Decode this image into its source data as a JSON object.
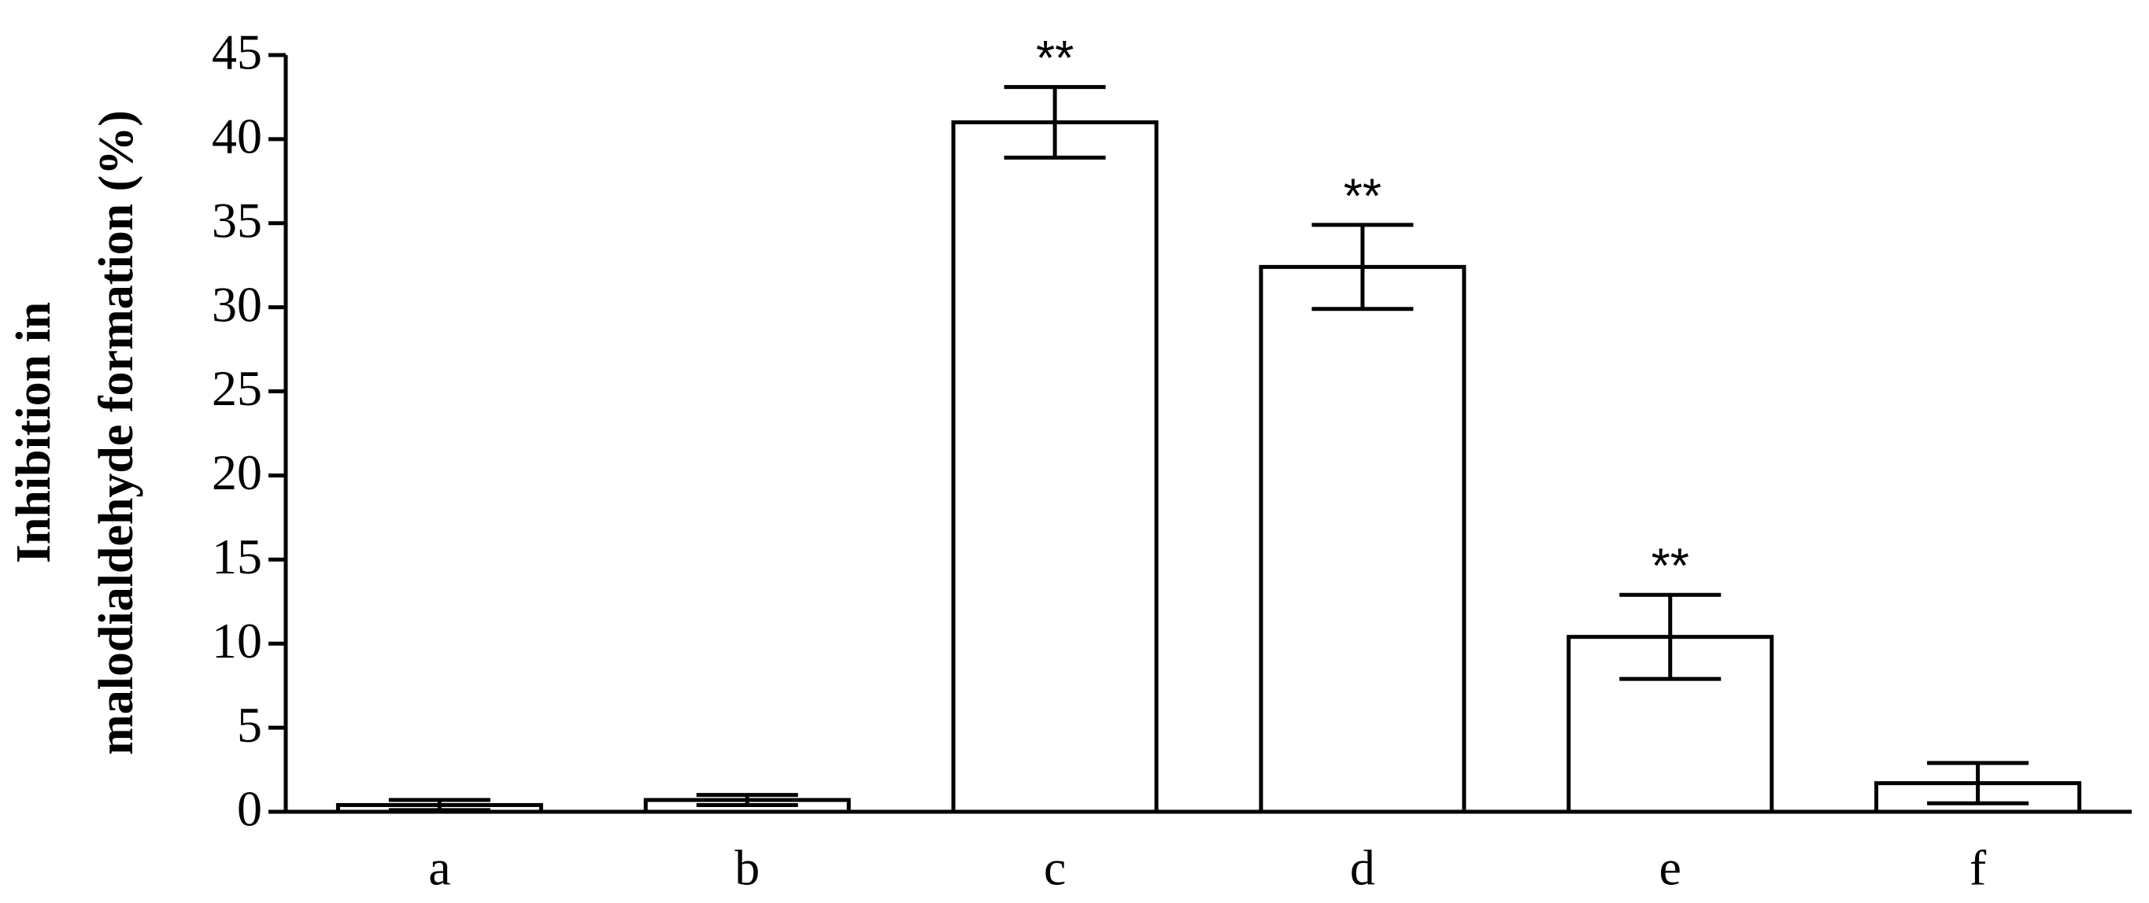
{
  "chart_data": {
    "type": "bar",
    "ylabel": [
      "Inhibition in",
      "malodialdehyde formation (%)"
    ],
    "categories": [
      "a",
      "b",
      "c",
      "d",
      "e",
      "f"
    ],
    "values": [
      0.4,
      0.7,
      41,
      32.4,
      10.4,
      1.7
    ],
    "errors": [
      0.3,
      0.3,
      2.1,
      2.5,
      2.5,
      1.2
    ],
    "annotations": [
      null,
      null,
      "**",
      "**",
      "**",
      null
    ],
    "color": "#ffffff",
    "ylim": [
      0,
      45
    ],
    "yticks": [
      0,
      5,
      10,
      15,
      20,
      25,
      30,
      35,
      40,
      45
    ],
    "grid": false
  }
}
